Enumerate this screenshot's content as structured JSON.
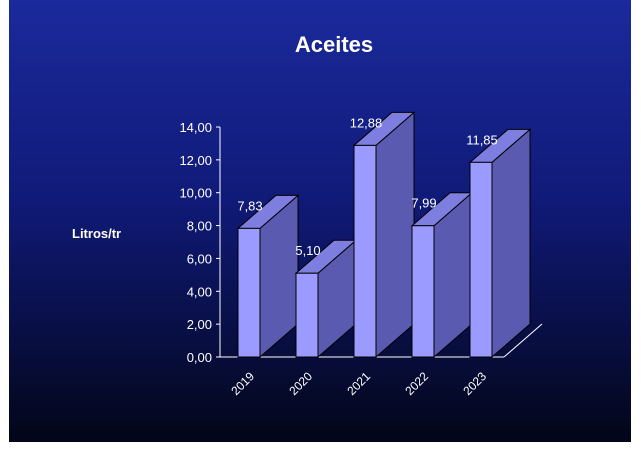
{
  "chart_data": {
    "type": "bar",
    "title": "Aceites",
    "ylabel": "Litros/tr",
    "xlabel": "",
    "categories": [
      "2019",
      "2020",
      "2021",
      "2022",
      "2023"
    ],
    "values": [
      7.83,
      5.1,
      12.88,
      7.99,
      11.85
    ],
    "data_labels": [
      "7,83",
      "5,10",
      "12,88",
      "7,99",
      "11,85"
    ],
    "ylim": [
      0,
      14
    ],
    "yticks": [
      "0,00",
      "2,00",
      "4,00",
      "6,00",
      "8,00",
      "10,00",
      "12,00",
      "14,00"
    ],
    "grid": false,
    "legend": "none",
    "style": "3d",
    "colors": {
      "bar_front": "#9b9bff",
      "bar_top": "#7e7ee0",
      "bar_side": "#5a5ab0",
      "axis": "#ffffff",
      "background_top": "#1b2a9c",
      "background_bottom": "#030617"
    }
  }
}
